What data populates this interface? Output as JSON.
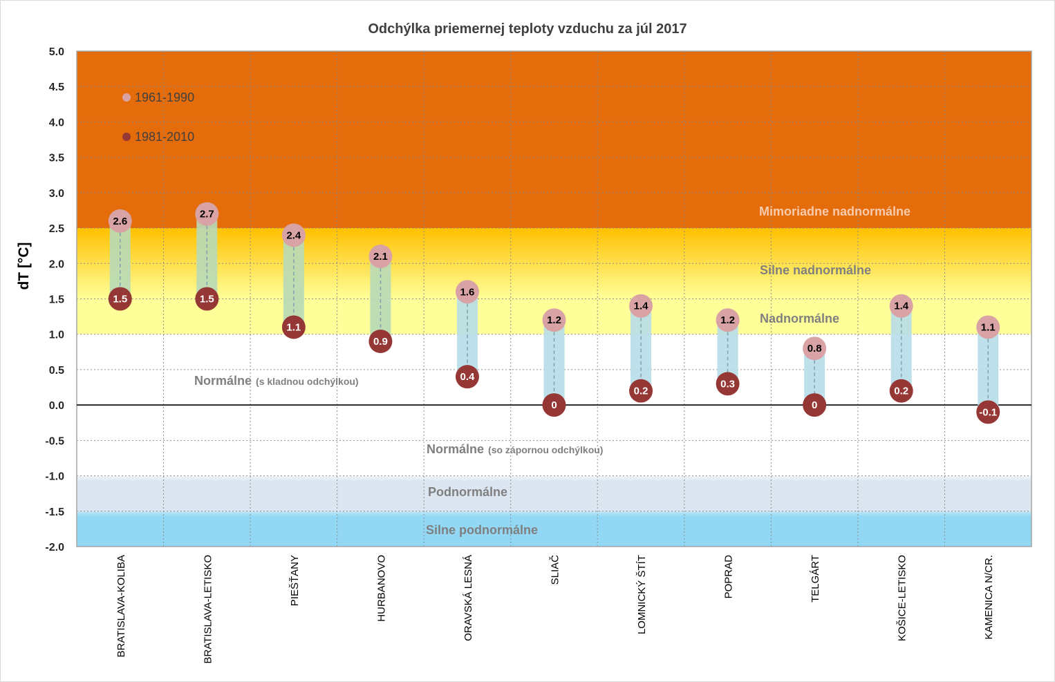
{
  "chart_data": {
    "type": "dot-range",
    "title": "Odchýlka priemernej teploty vzduchu za júl 2017",
    "ylabel": "dT [°C]",
    "ylim": [
      -2.0,
      5.0
    ],
    "yticks": [
      "5.0",
      "4.5",
      "4.0",
      "3.5",
      "3.0",
      "2.5",
      "2.0",
      "1.5",
      "1.0",
      "0.5",
      "0.0",
      "-0.5",
      "-1.0",
      "-1.5",
      "-2.0"
    ],
    "grid": true,
    "legend_position": "top-left",
    "categories": [
      "BRATISLAVA-KOLIBA",
      "BRATISLAVA-LETISKO",
      "PIEŠŤANY",
      "HURBANOVO",
      "ORAVSKÁ LESNÁ",
      "SLIAČ",
      "LOMNICKÝ ŠTÍT",
      "POPRAD",
      "TELGÁRT",
      "KOŠICE-LETISKO",
      "KAMENICA N/CR."
    ],
    "series": [
      {
        "name": "1961-1990",
        "color": "#d9a3a5",
        "label_color": "#000000",
        "values": [
          2.6,
          2.7,
          2.4,
          2.1,
          1.6,
          1.2,
          1.4,
          1.2,
          0.8,
          1.4,
          1.1
        ],
        "labels": [
          "2.6",
          "2.7",
          "2.4",
          "2.1",
          "1.6",
          "1.2",
          "1.4",
          "1.2",
          "0.8",
          "1.4",
          "1.1"
        ]
      },
      {
        "name": "1981-2010",
        "color": "#953735",
        "label_color": "#ffffff",
        "values": [
          1.5,
          1.5,
          1.1,
          0.9,
          0.4,
          0,
          0.2,
          0.3,
          0,
          0.2,
          -0.1
        ],
        "labels": [
          "1.5",
          "1.5",
          "1.1",
          "0.9",
          "0.4",
          "0",
          "0.2",
          "0.3",
          "0",
          "0.2",
          "-0.1"
        ]
      }
    ],
    "zones": [
      {
        "label": "Mimoriadne nadnormálne",
        "note": "",
        "from": 2.5,
        "to": 5.0,
        "color": "#e46c0a",
        "text_color": "#f8cbad"
      },
      {
        "label": "Silne nadnormálne",
        "note": "",
        "from": 1.5,
        "to": 2.5,
        "color": "#ffc000",
        "color_to": "#ffff99",
        "text_color": "#7f7f7f"
      },
      {
        "label": "Nadnormálne",
        "note": "",
        "from": 1.0,
        "to": 1.5,
        "color": "#ffff99",
        "text_color": "#7f7f7f"
      },
      {
        "label": "Normálne",
        "note": "(s kladnou odchýlkou)",
        "from": 0.0,
        "to": 1.0,
        "color": "#ffffff",
        "text_color": "#7f7f7f"
      },
      {
        "label": "Normálne",
        "note": "(so zápornou odchýlkou)",
        "from": -1.0,
        "to": 0.0,
        "color": "#ffffff",
        "text_color": "#7f7f7f"
      },
      {
        "label": "Podnormálne",
        "note": "",
        "from": -1.5,
        "to": -1.0,
        "color": "#dce6f1",
        "text_color": "#7f7f7f"
      },
      {
        "label": "Silne podnormálne",
        "note": "",
        "from": -2.0,
        "to": -1.5,
        "color": "#92d8f5",
        "text_color": "#7f7f7f"
      }
    ],
    "bar_colors": {
      "warm": "#b8d9b8",
      "normal": "#b7dde8"
    }
  }
}
